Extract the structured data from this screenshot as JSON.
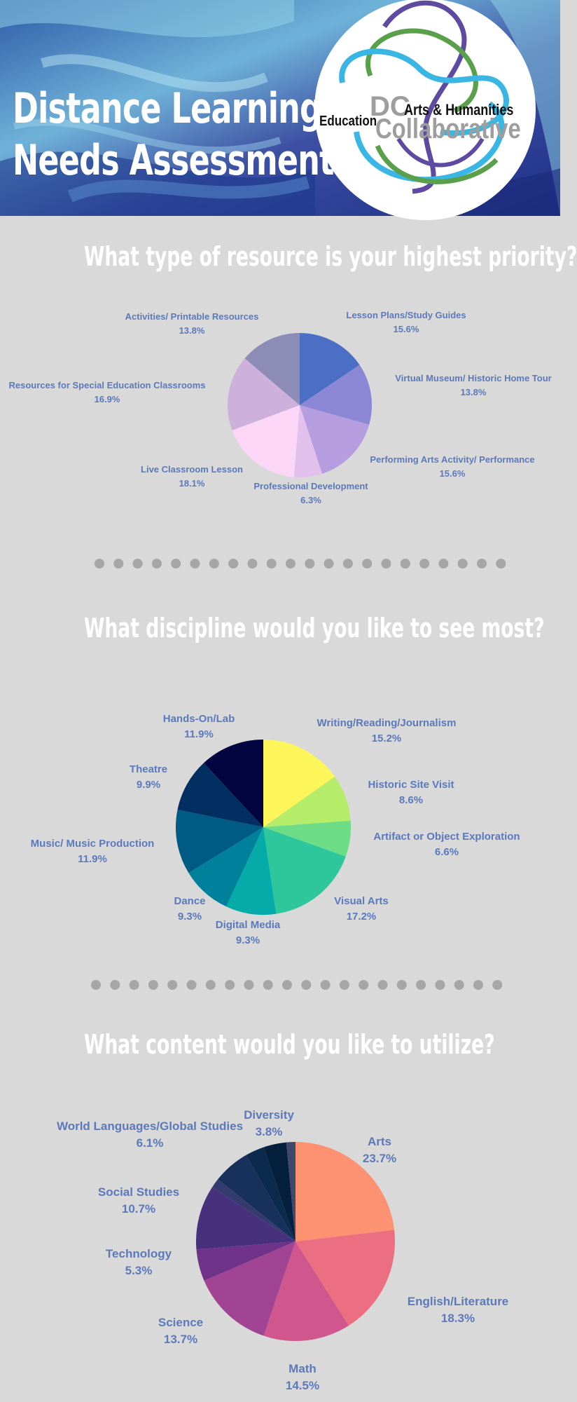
{
  "header": {
    "title_line1": "Distance Learning",
    "title_line2": "Needs Assessment",
    "logo": {
      "education": "Education",
      "dc": "DC",
      "arts": "Arts & Humanities",
      "collaborative": "Collaborative"
    }
  },
  "sections": [
    {
      "title": "What type of resource is your highest priority?"
    },
    {
      "title": "What discipline would you like to see most?"
    },
    {
      "title": "What content would you like to utilize?"
    }
  ],
  "chart_data": [
    {
      "type": "pie",
      "title": "What type of resource is your highest priority?",
      "slices": [
        {
          "label": "Lesson Plans/Study Guides",
          "value": 15.6,
          "display": "15.6%",
          "color": "#4a6fc5"
        },
        {
          "label": "Virtual Museum/ Historic Home Tour",
          "value": 13.8,
          "display": "13.8%",
          "color": "#8b87d4"
        },
        {
          "label": "Performing Arts Activity/ Performance",
          "value": 15.6,
          "display": "15.6%",
          "color": "#b69ddf"
        },
        {
          "label": "Professional Development",
          "value": 6.3,
          "display": "6.3%",
          "color": "#e1c0ec"
        },
        {
          "label": "Live Classroom Lesson",
          "value": 18.1,
          "display": "18.1%",
          "color": "#fcd6f7"
        },
        {
          "label": "Resources for Special Education Classrooms",
          "value": 16.9,
          "display": "16.9%",
          "color": "#cdb1dc"
        },
        {
          "label": "Activities/ Printable Resources",
          "value": 13.8,
          "display": "13.8%",
          "color": "#8c8cb6"
        }
      ]
    },
    {
      "type": "pie",
      "title": "What discipline would you like to see most?",
      "slices": [
        {
          "label": "Writing/Reading/Journalism",
          "value": 15.2,
          "display": "15.2%",
          "color": "#fdf65a"
        },
        {
          "label": "Historic Site Visit",
          "value": 8.6,
          "display": "8.6%",
          "color": "#b5ec6a"
        },
        {
          "label": "Artifact or Object Exploration",
          "value": 6.6,
          "display": "6.6%",
          "color": "#6cdd86"
        },
        {
          "label": "Visual Arts",
          "value": 17.2,
          "display": "17.2%",
          "color": "#2ec79c"
        },
        {
          "label": "Digital Media",
          "value": 9.3,
          "display": "9.3%",
          "color": "#05aba8"
        },
        {
          "label": "Dance",
          "value": 9.3,
          "display": "9.3%",
          "color": "#00819b"
        },
        {
          "label": "Music/ Music Production",
          "value": 11.9,
          "display": "11.9%",
          "color": "#005b84"
        },
        {
          "label": "Theatre",
          "value": 9.9,
          "display": "9.9%",
          "color": "#012f61"
        },
        {
          "label": "Hands-On/Lab",
          "value": 11.9,
          "display": "11.9%",
          "color": "#02053f"
        }
      ]
    },
    {
      "type": "pie",
      "title": "What content would you like to utilize?",
      "slices": [
        {
          "label": "Arts",
          "value": 23.7,
          "display": "23.7%",
          "color": "#fd9272"
        },
        {
          "label": "English/Literature",
          "value": 18.3,
          "display": "18.3%",
          "color": "#ec6f81"
        },
        {
          "label": "Math",
          "value": 14.5,
          "display": "14.5%",
          "color": "#d0578d"
        },
        {
          "label": "Science",
          "value": 13.7,
          "display": "13.7%",
          "color": "#a24494"
        },
        {
          "label": "Technology",
          "value": 5.3,
          "display": "5.3%",
          "color": "#6f3489"
        },
        {
          "label": "Social Studies",
          "value": 10.7,
          "display": "10.7%",
          "color": "#47317c"
        },
        {
          "label": "",
          "value": 1.6,
          "display": "",
          "color": "#353b6e"
        },
        {
          "label": "World Languages/Global Studies",
          "value": 6.1,
          "display": "6.1%",
          "color": "#18315c"
        },
        {
          "label": "",
          "value": 3.2,
          "display": "",
          "color": "#0c2a4e"
        },
        {
          "label": "Diversity",
          "value": 3.8,
          "display": "3.8%",
          "color": "#04203d"
        },
        {
          "label": "",
          "value": 1.5,
          "display": "",
          "color": "#3e4a6a"
        }
      ]
    }
  ]
}
